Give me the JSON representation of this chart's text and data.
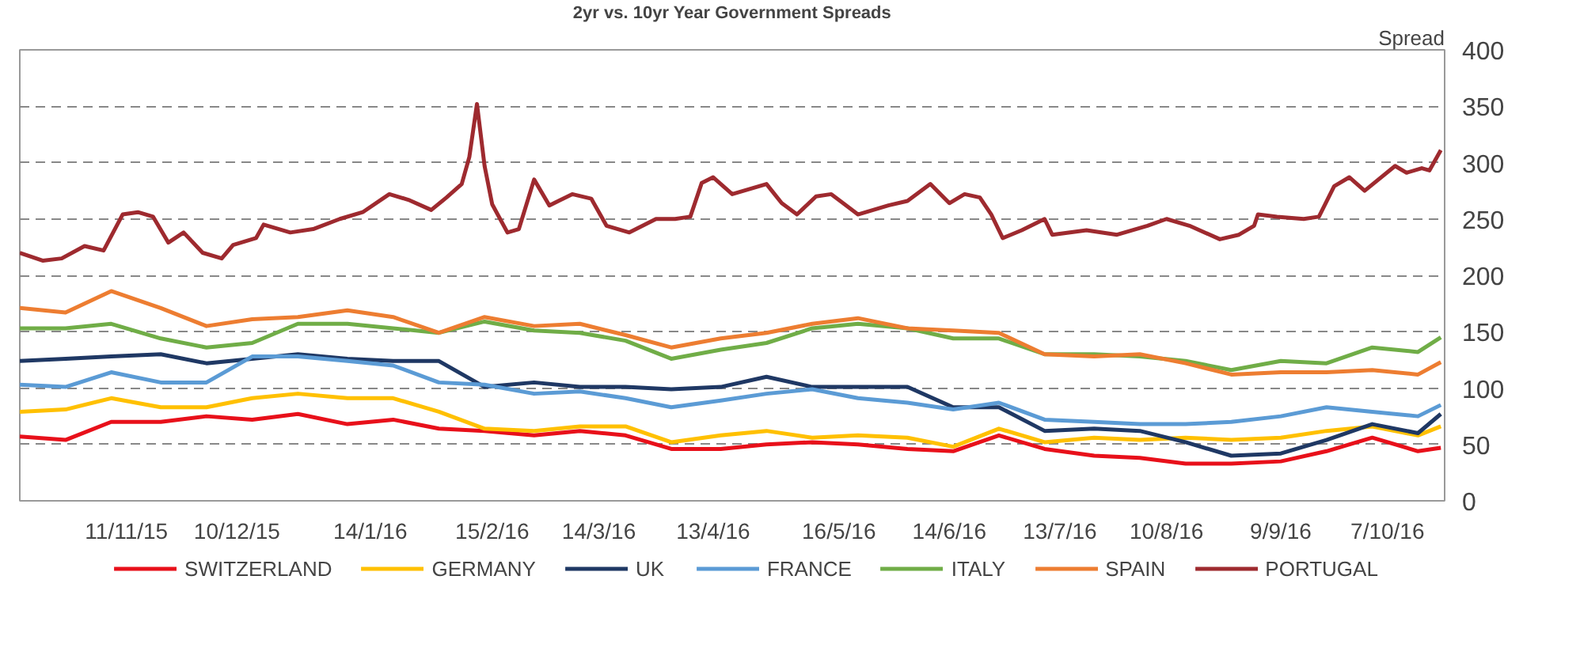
{
  "chart_data": {
    "type": "line",
    "title": "2yr vs. 10yr Year Government Spreads",
    "ylabel": "Spread",
    "x": [
      "2015-10-14",
      "2015-10-26",
      "2015-11-07",
      "2015-11-20",
      "2015-12-02",
      "2015-12-14",
      "2015-12-26",
      "2016-01-08",
      "2016-01-20",
      "2016-02-01",
      "2016-02-13",
      "2016-02-26",
      "2016-03-09",
      "2016-03-21",
      "2016-04-02",
      "2016-04-15",
      "2016-04-27",
      "2016-05-09",
      "2016-05-21",
      "2016-06-03",
      "2016-06-15",
      "2016-06-27",
      "2016-07-09",
      "2016-07-22",
      "2016-08-03",
      "2016-08-15",
      "2016-08-27",
      "2016-09-09",
      "2016-09-21",
      "2016-10-03",
      "2016-10-15",
      "2016-10-21"
    ],
    "series": [
      {
        "name": "SWITZERLAND",
        "color": "#e8101a",
        "values": [
          57,
          54,
          70,
          70,
          75,
          72,
          77,
          68,
          72,
          64,
          62,
          58,
          62,
          58,
          46,
          46,
          50,
          52,
          50,
          46,
          44,
          58,
          46,
          40,
          38,
          33,
          33,
          35,
          44,
          56,
          44,
          47
        ]
      },
      {
        "name": "GERMANY",
        "color": "#ffc000",
        "values": [
          79,
          81,
          91,
          83,
          83,
          91,
          95,
          91,
          91,
          79,
          64,
          62,
          66,
          66,
          52,
          58,
          62,
          56,
          58,
          56,
          48,
          64,
          52,
          56,
          54,
          56,
          54,
          56,
          62,
          66,
          58,
          66
        ]
      },
      {
        "name": "UK",
        "color": "#1f3864",
        "values": [
          124,
          126,
          128,
          130,
          122,
          126,
          130,
          126,
          124,
          124,
          101,
          105,
          101,
          101,
          99,
          101,
          110,
          101,
          101,
          101,
          83,
          83,
          62,
          64,
          62,
          52,
          40,
          42,
          54,
          68,
          60,
          77
        ]
      },
      {
        "name": "FRANCE",
        "color": "#5b9bd5",
        "values": [
          103,
          101,
          114,
          105,
          105,
          128,
          128,
          124,
          120,
          105,
          103,
          95,
          97,
          91,
          83,
          89,
          95,
          99,
          91,
          87,
          81,
          87,
          72,
          70,
          68,
          68,
          70,
          75,
          83,
          79,
          75,
          85
        ]
      },
      {
        "name": "ITALY",
        "color": "#70ad47",
        "values": [
          153,
          153,
          157,
          144,
          136,
          140,
          157,
          157,
          153,
          149,
          159,
          151,
          149,
          142,
          126,
          134,
          140,
          153,
          157,
          153,
          144,
          144,
          130,
          130,
          128,
          124,
          116,
          124,
          122,
          136,
          132,
          145
        ]
      },
      {
        "name": "SPAIN",
        "color": "#ed7d31",
        "values": [
          171,
          167,
          186,
          171,
          155,
          161,
          163,
          169,
          163,
          149,
          163,
          155,
          157,
          147,
          136,
          144,
          149,
          157,
          162,
          153,
          151,
          149,
          130,
          128,
          130,
          122,
          112,
          114,
          114,
          116,
          112,
          123
        ]
      },
      {
        "name": "PORTUGAL",
        "color": "#9e2a2f",
        "x": [
          "2015-10-14",
          "2015-10-20",
          "2015-10-25",
          "2015-10-31",
          "2015-11-05",
          "2015-11-10",
          "2015-11-14",
          "2015-11-18",
          "2015-11-22",
          "2015-11-26",
          "2015-12-01",
          "2015-12-06",
          "2015-12-09",
          "2015-12-15",
          "2015-12-17",
          "2015-12-24",
          "2015-12-30",
          "2016-01-06",
          "2016-01-12",
          "2016-01-19",
          "2016-01-24",
          "2016-01-30",
          "2016-02-03",
          "2016-02-07",
          "2016-02-09",
          "2016-02-11",
          "2016-02-13",
          "2016-02-15",
          "2016-02-19",
          "2016-02-22",
          "2016-02-26",
          "2016-03-01",
          "2016-03-07",
          "2016-03-12",
          "2016-03-16",
          "2016-03-22",
          "2016-03-29",
          "2016-04-03",
          "2016-04-07",
          "2016-04-10",
          "2016-04-13",
          "2016-04-18",
          "2016-04-27",
          "2016-05-01",
          "2016-05-05",
          "2016-05-10",
          "2016-05-14",
          "2016-05-21",
          "2016-05-29",
          "2016-06-03",
          "2016-06-09",
          "2016-06-14",
          "2016-06-18",
          "2016-06-22",
          "2016-06-25",
          "2016-06-28",
          "2016-07-03",
          "2016-07-09",
          "2016-07-11",
          "2016-07-20",
          "2016-07-28",
          "2016-08-05",
          "2016-08-10",
          "2016-08-16",
          "2016-08-24",
          "2016-08-29",
          "2016-09-02",
          "2016-09-03",
          "2016-09-08",
          "2016-09-15",
          "2016-09-19",
          "2016-09-23",
          "2016-09-27",
          "2016-10-01",
          "2016-10-09",
          "2016-10-12",
          "2016-10-16",
          "2016-10-18",
          "2016-10-21"
        ],
        "values": [
          220,
          213,
          215,
          226,
          222,
          254,
          256,
          252,
          229,
          238,
          220,
          215,
          227,
          233,
          245,
          238,
          241,
          250,
          256,
          272,
          267,
          258,
          269,
          281,
          305,
          352,
          297,
          263,
          238,
          241,
          285,
          262,
          272,
          268,
          244,
          238,
          250,
          250,
          252,
          282,
          287,
          272,
          281,
          264,
          254,
          270,
          272,
          254,
          262,
          266,
          281,
          264,
          272,
          269,
          254,
          233,
          240,
          250,
          236,
          240,
          236,
          244,
          250,
          244,
          232,
          236,
          244,
          254,
          252,
          250,
          252,
          279,
          287,
          275,
          297,
          291,
          295,
          293,
          311
        ]
      }
    ],
    "xlim": [
      "2015-10-14",
      "2016-10-22"
    ],
    "xticks": [
      {
        "value": "2015-11-11",
        "label": "11/11/15"
      },
      {
        "value": "2015-12-10",
        "label": "10/12/15"
      },
      {
        "value": "2016-01-14",
        "label": "14/1/16"
      },
      {
        "value": "2016-02-15",
        "label": "15/2/16"
      },
      {
        "value": "2016-03-14",
        "label": "14/3/16"
      },
      {
        "value": "2016-04-13",
        "label": "13/4/16"
      },
      {
        "value": "2016-05-16",
        "label": "16/5/16"
      },
      {
        "value": "2016-06-14",
        "label": "14/6/16"
      },
      {
        "value": "2016-07-13",
        "label": "13/7/16"
      },
      {
        "value": "2016-08-10",
        "label": "10/8/16"
      },
      {
        "value": "2016-09-09",
        "label": "9/9/16"
      },
      {
        "value": "2016-10-07",
        "label": "7/10/16"
      }
    ],
    "ylim": [
      0,
      400
    ],
    "yticks": [
      0,
      50,
      100,
      150,
      200,
      250,
      300,
      350,
      400
    ],
    "grid": "y",
    "legend": "bottom",
    "line_style": "solid",
    "marker": "none"
  }
}
